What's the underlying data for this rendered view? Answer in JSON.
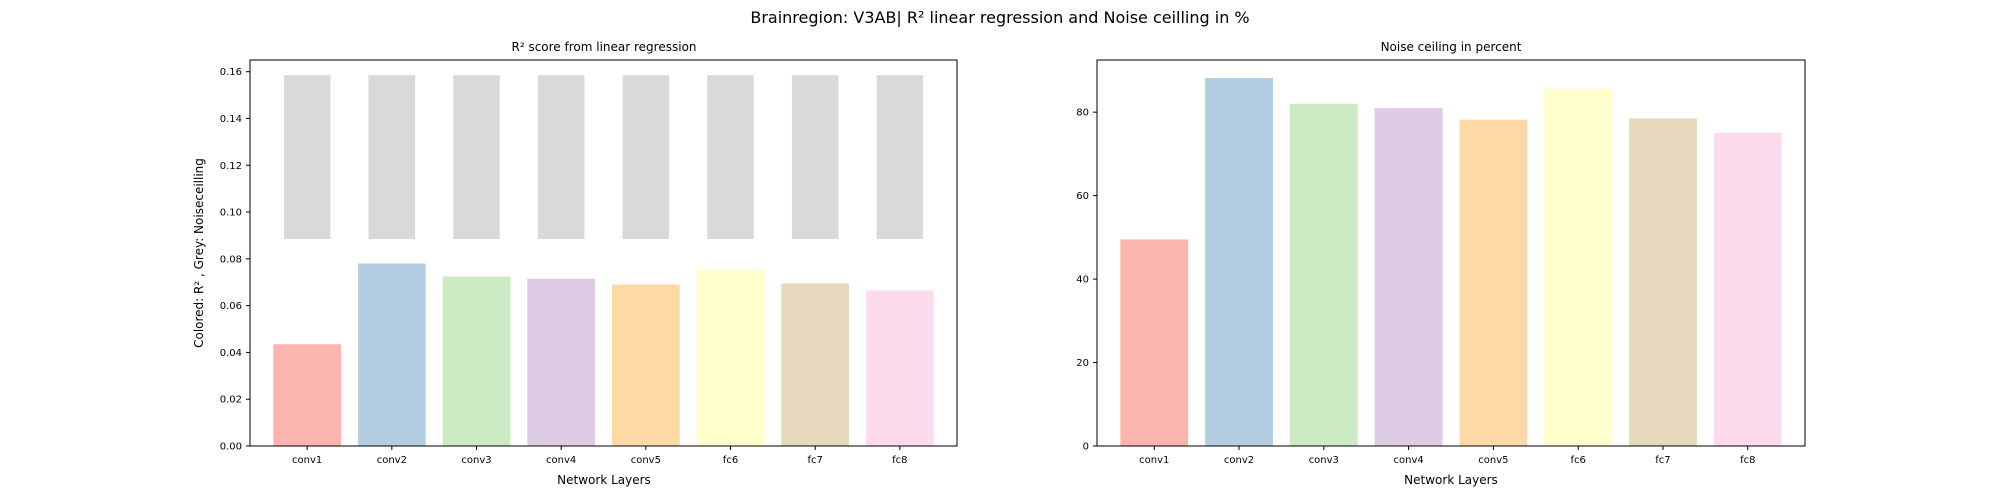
{
  "figure": {
    "suptitle": "Brainregion: V3AB| R² linear regression and Noise ceilling in %"
  },
  "chart_data": [
    {
      "type": "bar",
      "title": "R² score from linear regression",
      "xlabel": "Network Layers",
      "ylabel": "Colored: R² , Grey: Noiseceilling",
      "categories": [
        "conv1",
        "conv2",
        "conv3",
        "conv4",
        "conv5",
        "fc6",
        "fc7",
        "fc8"
      ],
      "ylim": [
        0,
        0.165
      ],
      "yticks": [
        "0.00",
        "0.02",
        "0.04",
        "0.06",
        "0.08",
        "0.10",
        "0.12",
        "0.14",
        "0.16"
      ],
      "series": [
        {
          "values": [
            0.0435,
            0.078,
            0.0725,
            0.0715,
            0.069,
            0.0755,
            0.0695,
            0.0665
          ],
          "colors": [
            "#fbb4ae",
            "#b3cde3",
            "#ccebc5",
            "#decbe4",
            "#fed9a6",
            "#ffffcc",
            "#e5d8bd",
            "#fddaec"
          ]
        },
        {
          "bar_bottom": 0.0885,
          "values": [
            0.1585,
            0.1585,
            0.1585,
            0.1585,
            0.1585,
            0.1585,
            0.1585,
            0.1585
          ],
          "color": "#d9d9d9"
        }
      ]
    },
    {
      "type": "bar",
      "title": "Noise ceiling in percent",
      "xlabel": "Network Layers",
      "ylabel": "",
      "categories": [
        "conv1",
        "conv2",
        "conv3",
        "conv4",
        "conv5",
        "fc6",
        "fc7",
        "fc8"
      ],
      "ylim": [
        0,
        92.5
      ],
      "yticks": [
        "0",
        "20",
        "40",
        "60",
        "80"
      ],
      "series": [
        {
          "values": [
            49.5,
            88.2,
            82.0,
            81.0,
            78.2,
            85.6,
            78.5,
            75.0
          ],
          "colors": [
            "#fbb4ae",
            "#b3cde3",
            "#ccebc5",
            "#decbe4",
            "#fed9a6",
            "#ffffcc",
            "#e5d8bd",
            "#fddaec"
          ]
        }
      ]
    }
  ]
}
